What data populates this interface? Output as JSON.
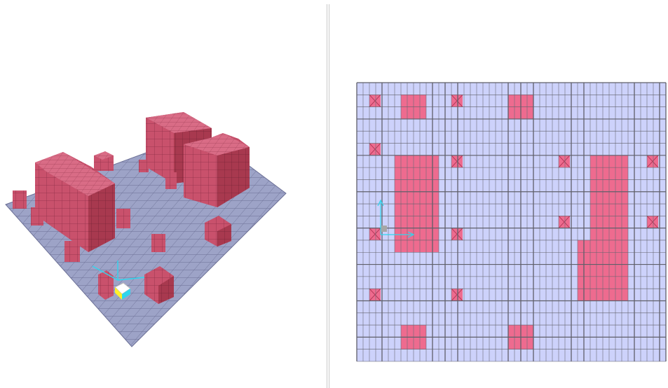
{
  "window": {
    "title": ""
  },
  "viewports": {
    "perspective": {
      "view": "3D"
    },
    "plan": {
      "view": "Plan"
    }
  },
  "colors": {
    "grid_fill": "#cdd2fb",
    "grid_line": "#5f5f6a",
    "grid_line_fine": "#6c6c78",
    "solid_fill": "#ee6b8f",
    "solid_line": "#b23a5a",
    "floor3d_fill": "#9da3c7",
    "floor3d_line": "#6c7096",
    "block_top": "#d96c86",
    "block_front": "#c9516c",
    "block_side": "#a8394f",
    "axis": "#2fd6ee",
    "origin_marker": "#a6a6a6"
  },
  "plan_grid": {
    "x_lines": [
      0,
      9,
      18,
      27,
      36,
      45,
      54,
      63,
      72,
      81,
      90,
      99,
      108,
      117,
      126,
      135,
      144,
      153,
      162,
      171,
      180,
      189,
      198,
      207,
      216,
      225,
      234,
      243,
      252,
      261,
      270,
      279,
      288,
      297,
      306,
      315,
      324,
      333,
      342,
      351,
      360,
      369,
      378,
      387,
      396,
      405,
      414,
      423,
      432,
      441
    ],
    "major_x": [
      0,
      36,
      108,
      126,
      144,
      216,
      234,
      252,
      306,
      324,
      396,
      432,
      441
    ],
    "y_lines_count": 23,
    "solids": [
      {
        "c0": 7,
        "r0": 1,
        "c1": 11,
        "r1": 3
      },
      {
        "c0": 24,
        "r0": 1,
        "c1": 28,
        "r1": 3
      },
      {
        "c0": 6,
        "r0": 6,
        "c1": 13,
        "r1": 14
      },
      {
        "c0": 37,
        "r0": 6,
        "c1": 43,
        "r1": 14
      },
      {
        "c0": 35,
        "r0": 13,
        "c1": 43,
        "r1": 18
      },
      {
        "c0": 7,
        "r0": 20,
        "c1": 11,
        "r1": 22
      },
      {
        "c0": 24,
        "r0": 20,
        "c1": 28,
        "r1": 22
      }
    ],
    "crossed": [
      {
        "c": 2,
        "r": 1
      },
      {
        "c": 15,
        "r": 1
      },
      {
        "c": 2,
        "r": 5
      },
      {
        "c": 15,
        "r": 6
      },
      {
        "c": 32,
        "r": 6
      },
      {
        "c": 46,
        "r": 6
      },
      {
        "c": 2,
        "r": 12
      },
      {
        "c": 15,
        "r": 12
      },
      {
        "c": 32,
        "r": 11
      },
      {
        "c": 46,
        "r": 11
      },
      {
        "c": 2,
        "r": 17
      },
      {
        "c": 15,
        "r": 17
      }
    ]
  }
}
